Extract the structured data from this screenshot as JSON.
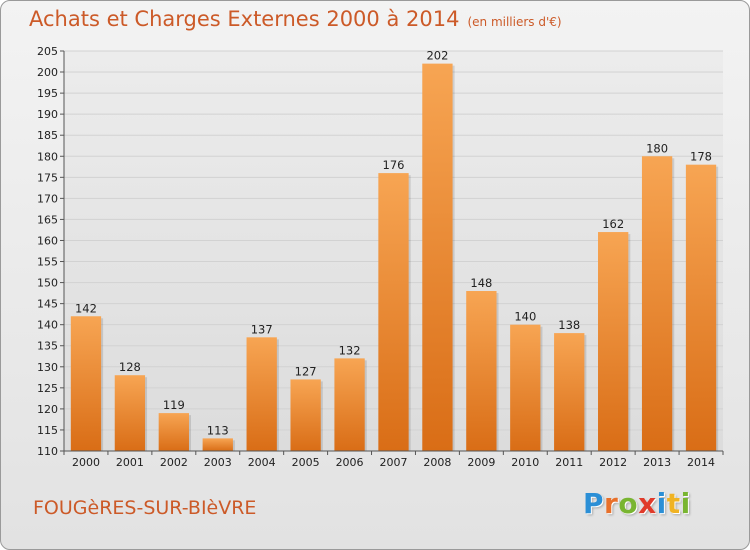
{
  "header": {
    "title": "Achats et Charges Externes 2000 à 2014",
    "unit": "(en milliers d'€)"
  },
  "footer": {
    "city": "FOUGèRES-SUR-BIèVRE",
    "logo_letters": [
      "P",
      "r",
      "o",
      "x",
      "i",
      "t",
      "i"
    ],
    "logo_colors": [
      "#2b8fd6",
      "#e8702a",
      "#79b531",
      "#e03b2a",
      "#2b8fd6",
      "#f0b323",
      "#79b531"
    ]
  },
  "chart_data": {
    "type": "bar",
    "categories": [
      "2000",
      "2001",
      "2002",
      "2003",
      "2004",
      "2005",
      "2006",
      "2007",
      "2008",
      "2009",
      "2010",
      "2011",
      "2012",
      "2013",
      "2014"
    ],
    "values": [
      142,
      128,
      119,
      113,
      137,
      127,
      132,
      176,
      202,
      148,
      140,
      138,
      162,
      180,
      178
    ],
    "title": "Achats et Charges Externes 2000 à 2014",
    "ylim": [
      110,
      205
    ],
    "ytick_step": 5,
    "grid": true,
    "legend": "none",
    "colors": {
      "bar_light": "#f7a553",
      "bar_dark": "#d96d16",
      "grid": "#d2d2d2"
    }
  }
}
